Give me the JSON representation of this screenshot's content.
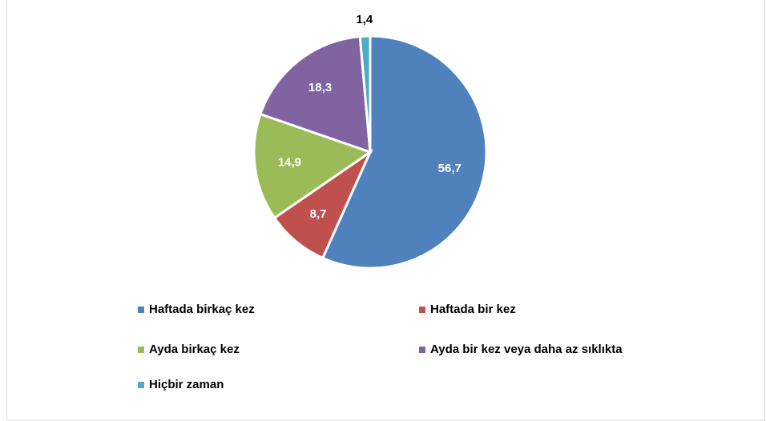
{
  "chart_data": {
    "type": "pie",
    "categories": [
      "Haftada birkaç kez",
      "Haftada bir kez",
      "Ayda birkaç kez",
      "Ayda bir kez veya daha az sıklıkta",
      "Hiçbir zaman"
    ],
    "values": [
      56.7,
      8.7,
      14.9,
      18.3,
      1.4
    ],
    "value_labels": [
      "56,7",
      "8,7",
      "14,9",
      "18,3",
      "1,4"
    ],
    "colors": [
      "#4f81bd",
      "#c0504d",
      "#9bbb59",
      "#8064a2",
      "#4bacc6"
    ]
  }
}
